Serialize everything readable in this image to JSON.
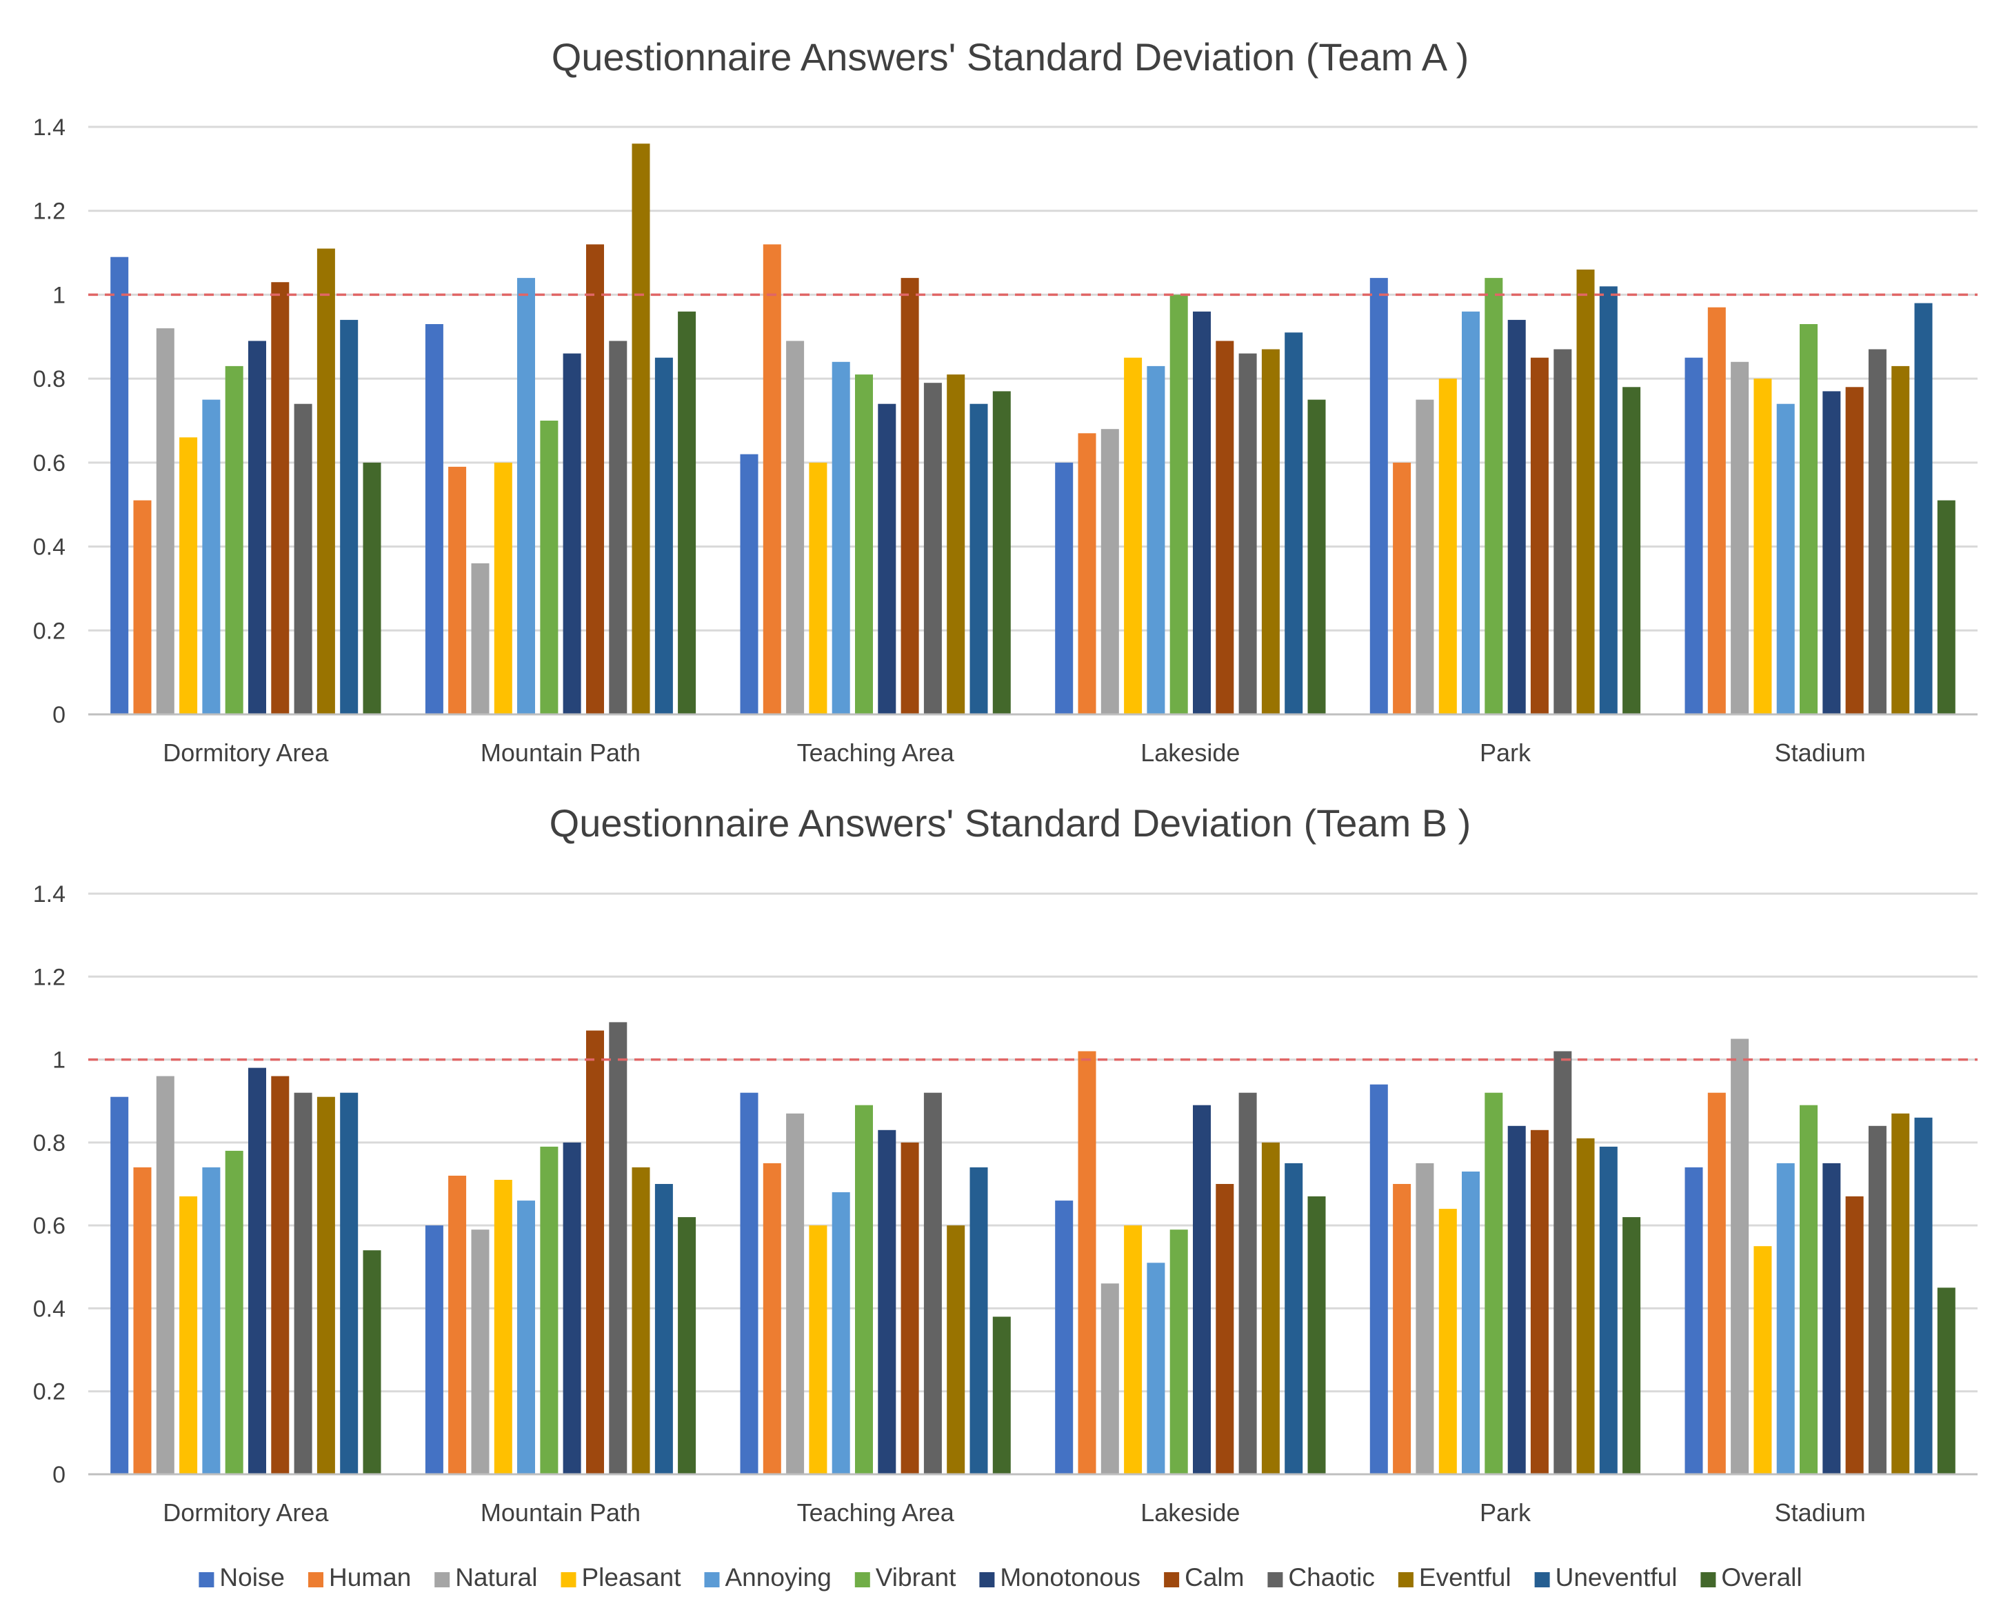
{
  "chart_data": [
    {
      "type": "bar",
      "title": "Questionnaire Answers' Standard Deviation (Team A )",
      "xlabel": "",
      "ylabel": "",
      "ylim": [
        0,
        1.4
      ],
      "yticks": [
        0,
        0.2,
        0.4,
        0.6,
        0.8,
        1,
        1.2,
        1.4
      ],
      "ytick_labels": [
        "0",
        "0.2",
        "0.4",
        "0.6",
        "0.8",
        "1",
        "1.2",
        "1.4"
      ],
      "grid": true,
      "reference_line": {
        "value": 1,
        "style": "dashed",
        "color": "#e06666"
      },
      "categories": [
        "Dormitory Area",
        "Mountain Path",
        "Teaching Area",
        "Lakeside",
        "Park",
        "Stadium"
      ],
      "series": [
        {
          "name": "Noise",
          "color": "#4472c4",
          "values": [
            1.09,
            0.93,
            0.62,
            0.6,
            1.04,
            0.85
          ]
        },
        {
          "name": "Human",
          "color": "#ed7d31",
          "values": [
            0.51,
            0.59,
            1.12,
            0.67,
            0.6,
            0.97
          ]
        },
        {
          "name": "Natural",
          "color": "#a5a5a5",
          "values": [
            0.92,
            0.36,
            0.89,
            0.68,
            0.75,
            0.84
          ]
        },
        {
          "name": "Pleasant",
          "color": "#ffc000",
          "values": [
            0.66,
            0.6,
            0.6,
            0.85,
            0.8,
            0.8
          ]
        },
        {
          "name": "Annoying",
          "color": "#5b9bd5",
          "values": [
            0.75,
            1.04,
            0.84,
            0.83,
            0.96,
            0.74
          ]
        },
        {
          "name": "Vibrant",
          "color": "#70ad47",
          "values": [
            0.83,
            0.7,
            0.81,
            1.0,
            1.04,
            0.93
          ]
        },
        {
          "name": "Monotonous",
          "color": "#264478",
          "values": [
            0.89,
            0.86,
            0.74,
            0.96,
            0.94,
            0.77
          ]
        },
        {
          "name": "Calm",
          "color": "#9e480e",
          "values": [
            1.03,
            1.12,
            1.04,
            0.89,
            0.85,
            0.78
          ]
        },
        {
          "name": "Chaotic",
          "color": "#636363",
          "values": [
            0.74,
            0.89,
            0.79,
            0.86,
            0.87,
            0.87
          ]
        },
        {
          "name": "Eventful",
          "color": "#997300",
          "values": [
            1.11,
            1.36,
            0.81,
            0.87,
            1.06,
            0.83
          ]
        },
        {
          "name": "Uneventful",
          "color": "#255e91",
          "values": [
            0.94,
            0.85,
            0.74,
            0.91,
            1.02,
            0.98
          ]
        },
        {
          "name": "Overall",
          "color": "#43682b",
          "values": [
            0.6,
            0.96,
            0.77,
            0.75,
            0.78,
            0.51
          ]
        }
      ]
    },
    {
      "type": "bar",
      "title": "Questionnaire Answers' Standard Deviation (Team B )",
      "xlabel": "",
      "ylabel": "",
      "ylim": [
        0,
        1.4
      ],
      "yticks": [
        0,
        0.2,
        0.4,
        0.6,
        0.8,
        1,
        1.2,
        1.4
      ],
      "ytick_labels": [
        "0",
        "0.2",
        "0.4",
        "0.6",
        "0.8",
        "1",
        "1.2",
        "1.4"
      ],
      "grid": true,
      "reference_line": {
        "value": 1,
        "style": "dashed",
        "color": "#e06666"
      },
      "categories": [
        "Dormitory Area",
        "Mountain Path",
        "Teaching Area",
        "Lakeside",
        "Park",
        "Stadium"
      ],
      "series": [
        {
          "name": "Noise",
          "color": "#4472c4",
          "values": [
            0.91,
            0.6,
            0.92,
            0.66,
            0.94,
            0.74
          ]
        },
        {
          "name": "Human",
          "color": "#ed7d31",
          "values": [
            0.74,
            0.72,
            0.75,
            1.02,
            0.7,
            0.92
          ]
        },
        {
          "name": "Natural",
          "color": "#a5a5a5",
          "values": [
            0.96,
            0.59,
            0.87,
            0.46,
            0.75,
            1.05
          ]
        },
        {
          "name": "Pleasant",
          "color": "#ffc000",
          "values": [
            0.67,
            0.71,
            0.6,
            0.6,
            0.64,
            0.55
          ]
        },
        {
          "name": "Annoying",
          "color": "#5b9bd5",
          "values": [
            0.74,
            0.66,
            0.68,
            0.51,
            0.73,
            0.75
          ]
        },
        {
          "name": "Vibrant",
          "color": "#70ad47",
          "values": [
            0.78,
            0.79,
            0.89,
            0.59,
            0.92,
            0.89
          ]
        },
        {
          "name": "Monotonous",
          "color": "#264478",
          "values": [
            0.98,
            0.8,
            0.83,
            0.89,
            0.84,
            0.75
          ]
        },
        {
          "name": "Calm",
          "color": "#9e480e",
          "values": [
            0.96,
            1.07,
            0.8,
            0.7,
            0.83,
            0.67
          ]
        },
        {
          "name": "Chaotic",
          "color": "#636363",
          "values": [
            0.92,
            1.09,
            0.92,
            0.92,
            1.02,
            0.84
          ]
        },
        {
          "name": "Eventful",
          "color": "#997300",
          "values": [
            0.91,
            0.74,
            0.6,
            0.8,
            0.81,
            0.87
          ]
        },
        {
          "name": "Uneventful",
          "color": "#255e91",
          "values": [
            0.92,
            0.7,
            0.74,
            0.75,
            0.79,
            0.86
          ]
        },
        {
          "name": "Overall",
          "color": "#43682b",
          "values": [
            0.54,
            0.62,
            0.38,
            0.67,
            0.62,
            0.45
          ]
        }
      ]
    }
  ],
  "legend": {
    "position": "bottom",
    "items": [
      "Noise",
      "Human",
      "Natural",
      "Pleasant",
      "Annoying",
      "Vibrant",
      "Monotonous",
      "Calm",
      "Chaotic",
      "Eventful",
      "Uneventful",
      "Overall"
    ]
  }
}
